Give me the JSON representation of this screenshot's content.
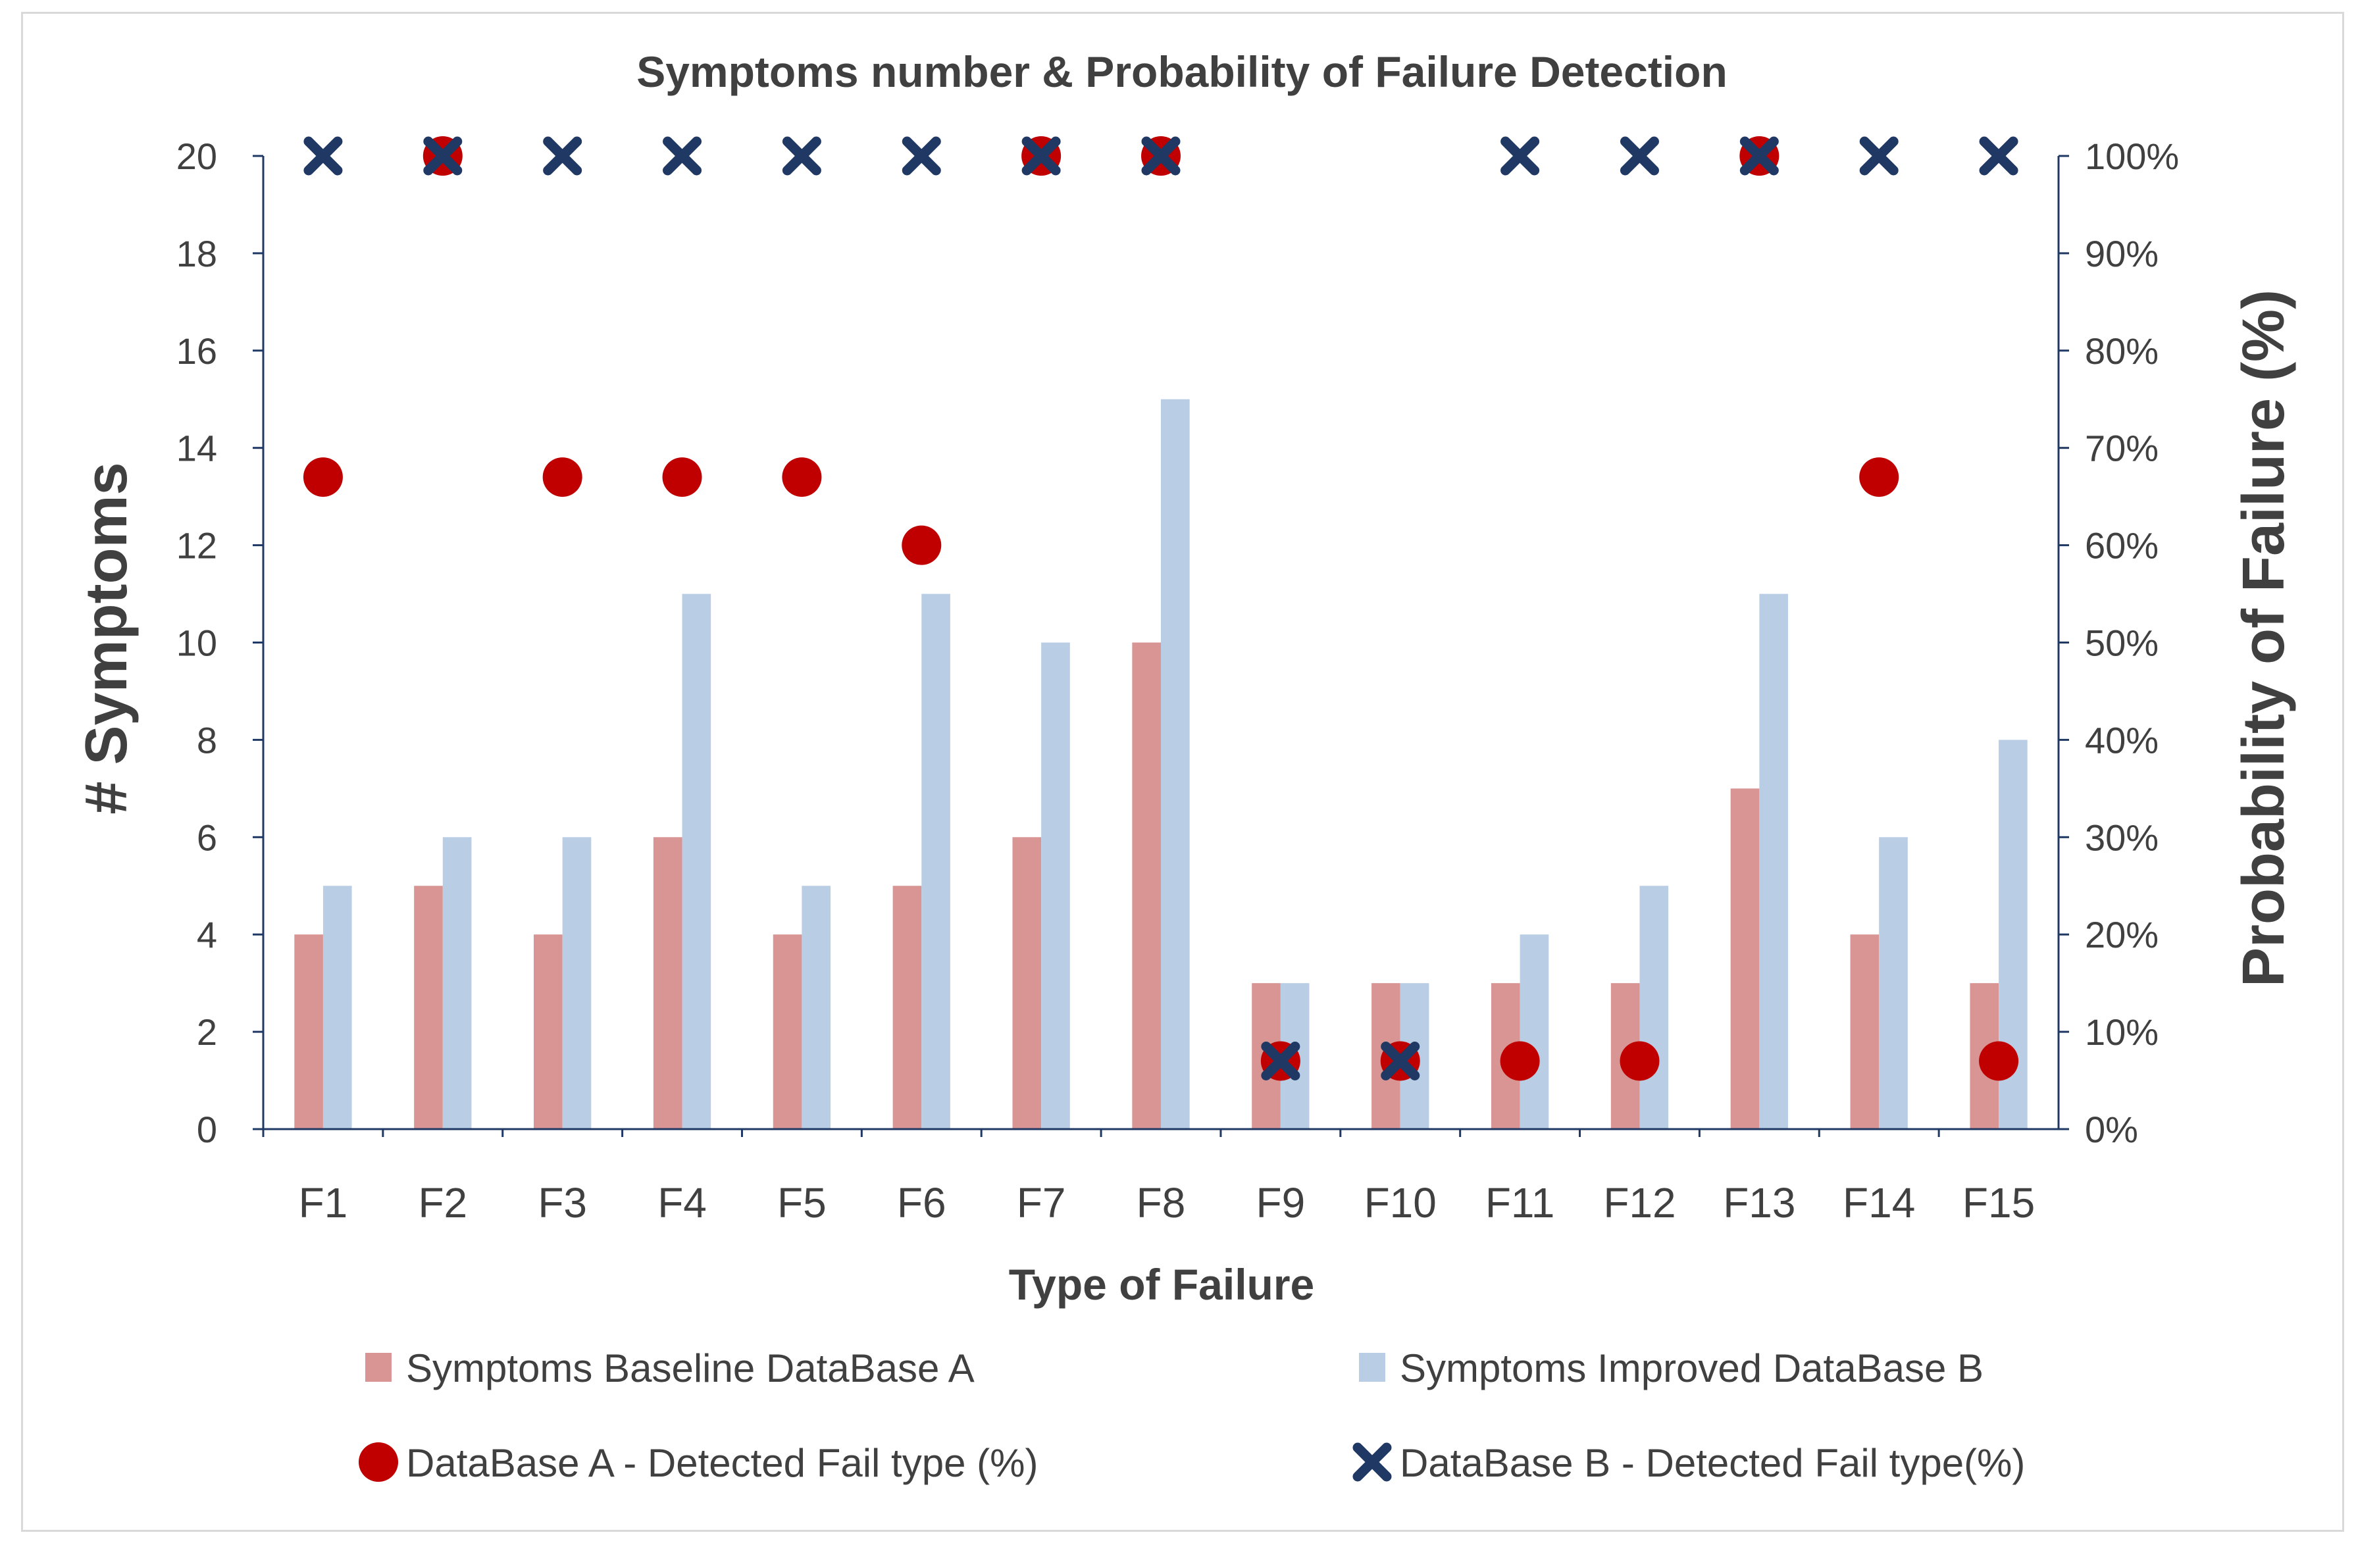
{
  "chart_data": {
    "type": "bar",
    "title": "Symptoms number & Probability of Failure Detection",
    "xlabel": "Type of Failure",
    "ylabel": "# Symptoms",
    "y2label": "Probability of Failure (%)",
    "ylim": [
      0,
      20
    ],
    "y2lim": [
      0,
      100
    ],
    "yticks": [
      "0",
      "2",
      "4",
      "6",
      "8",
      "10",
      "12",
      "14",
      "16",
      "18",
      "20"
    ],
    "y2ticks": [
      "0%",
      "10%",
      "20%",
      "30%",
      "40%",
      "50%",
      "60%",
      "70%",
      "80%",
      "90%",
      "100%"
    ],
    "categories": [
      "F1",
      "F2",
      "F3",
      "F4",
      "F5",
      "F6",
      "F7",
      "F8",
      "F9",
      "F10",
      "F11",
      "F12",
      "F13",
      "F14",
      "F15"
    ],
    "series": [
      {
        "name": "Symptoms Baseline DataBase A",
        "kind": "bar",
        "axis": "left",
        "color": "#d99594",
        "values": [
          4,
          5,
          4,
          6,
          4,
          5,
          6,
          10,
          3,
          3,
          3,
          3,
          7,
          4,
          3
        ]
      },
      {
        "name": "Symptoms Improved DataBase B",
        "kind": "bar",
        "axis": "left",
        "color": "#b9cde5",
        "values": [
          5,
          6,
          6,
          11,
          5,
          11,
          10,
          15,
          3,
          3,
          4,
          5,
          11,
          6,
          8
        ]
      },
      {
        "name": "DataBase A - Detected Fail type (%)",
        "kind": "scatter-circle",
        "axis": "right",
        "color": "#c00000",
        "values": [
          67,
          100,
          67,
          67,
          67,
          60,
          100,
          100,
          7,
          7,
          7,
          7,
          100,
          67,
          7
        ]
      },
      {
        "name": "DataBase B - Detected Fail type(%)",
        "kind": "scatter-x",
        "axis": "right",
        "color": "#1f3864",
        "values": [
          100,
          100,
          100,
          100,
          100,
          100,
          100,
          100,
          7,
          7,
          100,
          100,
          100,
          100,
          100
        ]
      }
    ],
    "legend": "bottom"
  }
}
